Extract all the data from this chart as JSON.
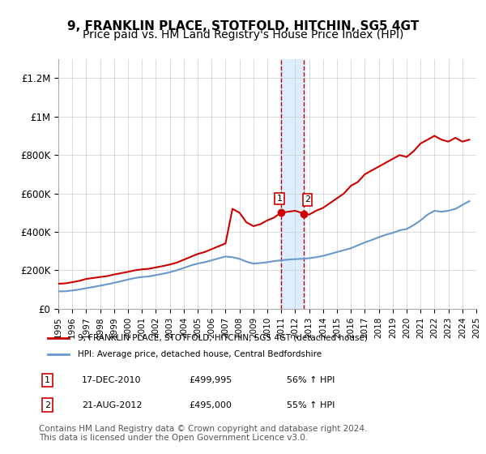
{
  "title": "9, FRANKLIN PLACE, STOTFOLD, HITCHIN, SG5 4GT",
  "subtitle": "Price paid vs. HM Land Registry's House Price Index (HPI)",
  "title_fontsize": 11,
  "subtitle_fontsize": 10,
  "background_color": "#ffffff",
  "plot_bg_color": "#ffffff",
  "grid_color": "#cccccc",
  "red_line_color": "#cc0000",
  "blue_line_color": "#6699cc",
  "highlight_color": "#ddeeff",
  "highlight_x1": 2010.95,
  "highlight_x2": 2012.65,
  "xmin": 1995,
  "xmax": 2025,
  "ymin": 0,
  "ymax": 1300000,
  "yticks": [
    0,
    200000,
    400000,
    600000,
    800000,
    1000000,
    1200000
  ],
  "ytick_labels": [
    "£0",
    "£200K",
    "£400K",
    "£600K",
    "£800K",
    "£1M",
    "£1.2M"
  ],
  "xticks": [
    1995,
    1996,
    1997,
    1998,
    1999,
    2000,
    2001,
    2002,
    2003,
    2004,
    2005,
    2006,
    2007,
    2008,
    2009,
    2010,
    2011,
    2012,
    2013,
    2014,
    2015,
    2016,
    2017,
    2018,
    2019,
    2020,
    2021,
    2022,
    2023,
    2024,
    2025
  ],
  "red_x": [
    1995.0,
    1995.5,
    1996.0,
    1996.5,
    1997.0,
    1997.5,
    1998.0,
    1998.5,
    1999.0,
    1999.5,
    2000.0,
    2000.5,
    2001.0,
    2001.5,
    2002.0,
    2002.5,
    2003.0,
    2003.5,
    2004.0,
    2004.5,
    2005.0,
    2005.5,
    2006.0,
    2006.5,
    2007.0,
    2007.5,
    2008.0,
    2008.5,
    2009.0,
    2009.5,
    2010.0,
    2010.5,
    2010.96,
    2011.5,
    2012.0,
    2012.63,
    2013.0,
    2013.5,
    2014.0,
    2014.5,
    2015.0,
    2015.5,
    2016.0,
    2016.5,
    2017.0,
    2017.5,
    2018.0,
    2018.5,
    2019.0,
    2019.5,
    2020.0,
    2020.5,
    2021.0,
    2021.5,
    2022.0,
    2022.5,
    2023.0,
    2023.5,
    2024.0,
    2024.5
  ],
  "red_y": [
    130000,
    132000,
    138000,
    145000,
    155000,
    160000,
    165000,
    170000,
    178000,
    185000,
    192000,
    200000,
    205000,
    208000,
    215000,
    222000,
    230000,
    240000,
    255000,
    270000,
    285000,
    295000,
    310000,
    325000,
    340000,
    520000,
    500000,
    450000,
    430000,
    440000,
    460000,
    475000,
    499995,
    505000,
    510000,
    495000,
    490000,
    510000,
    525000,
    550000,
    575000,
    600000,
    640000,
    660000,
    700000,
    720000,
    740000,
    760000,
    780000,
    800000,
    790000,
    820000,
    860000,
    880000,
    900000,
    880000,
    870000,
    890000,
    870000,
    880000
  ],
  "blue_x": [
    1995.0,
    1995.5,
    1996.0,
    1996.5,
    1997.0,
    1997.5,
    1998.0,
    1998.5,
    1999.0,
    1999.5,
    2000.0,
    2000.5,
    2001.0,
    2001.5,
    2002.0,
    2002.5,
    2003.0,
    2003.5,
    2004.0,
    2004.5,
    2005.0,
    2005.5,
    2006.0,
    2006.5,
    2007.0,
    2007.5,
    2008.0,
    2008.5,
    2009.0,
    2009.5,
    2010.0,
    2010.5,
    2011.0,
    2011.5,
    2012.0,
    2012.5,
    2013.0,
    2013.5,
    2014.0,
    2014.5,
    2015.0,
    2015.5,
    2016.0,
    2016.5,
    2017.0,
    2017.5,
    2018.0,
    2018.5,
    2019.0,
    2019.5,
    2020.0,
    2020.5,
    2021.0,
    2021.5,
    2022.0,
    2022.5,
    2023.0,
    2023.5,
    2024.0,
    2024.5
  ],
  "blue_y": [
    90000,
    91000,
    95000,
    100000,
    107000,
    113000,
    120000,
    127000,
    135000,
    143000,
    152000,
    160000,
    165000,
    168000,
    175000,
    182000,
    190000,
    200000,
    212000,
    225000,
    235000,
    242000,
    252000,
    262000,
    272000,
    268000,
    260000,
    245000,
    235000,
    238000,
    242000,
    248000,
    252000,
    256000,
    258000,
    260000,
    263000,
    268000,
    275000,
    285000,
    295000,
    305000,
    315000,
    330000,
    345000,
    358000,
    372000,
    385000,
    395000,
    408000,
    415000,
    435000,
    460000,
    490000,
    510000,
    505000,
    510000,
    520000,
    540000,
    560000
  ],
  "point1_x": 2010.96,
  "point1_y": 499995,
  "point2_x": 2012.63,
  "point2_y": 495000,
  "legend_label_red": "9, FRANKLIN PLACE, STOTFOLD, HITCHIN, SG5 4GT (detached house)",
  "legend_label_blue": "HPI: Average price, detached house, Central Bedfordshire",
  "table_rows": [
    {
      "num": "1",
      "date": "17-DEC-2010",
      "price": "£499,995",
      "change": "56% ↑ HPI"
    },
    {
      "num": "2",
      "date": "21-AUG-2012",
      "price": "£495,000",
      "change": "55% ↑ HPI"
    }
  ],
  "footer": "Contains HM Land Registry data © Crown copyright and database right 2024.\nThis data is licensed under the Open Government Licence v3.0.",
  "footer_fontsize": 7.5
}
